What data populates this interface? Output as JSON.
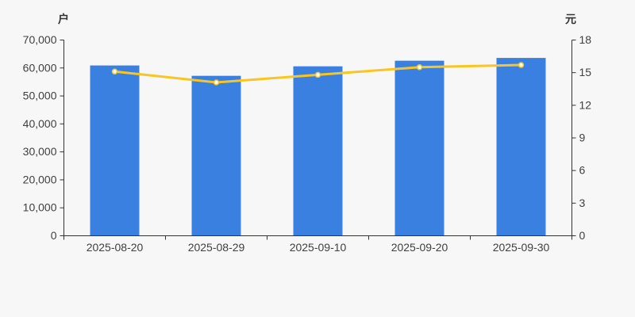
{
  "page": {
    "background_color": "#f7f7f7"
  },
  "chart_data": {
    "type": "bar",
    "subtype": "bar-with-line-dual-axis",
    "categories": [
      "2025-08-20",
      "2025-08-29",
      "2025-09-10",
      "2025-09-20",
      "2025-09-30"
    ],
    "series": [
      {
        "type": "bar",
        "axis": "left",
        "values": [
          60900,
          57200,
          60600,
          62600,
          63600
        ],
        "color": "#3a80e0"
      },
      {
        "type": "line",
        "axis": "right",
        "values": [
          15.1,
          14.1,
          14.8,
          15.5,
          15.7
        ],
        "color": "#f8c522",
        "marker_fill": "#ffffff"
      }
    ],
    "left_axis": {
      "unit": "户",
      "min": 0,
      "max": 70000,
      "tick_step": 10000,
      "tick_labels": [
        "0",
        "10,000",
        "20,000",
        "30,000",
        "40,000",
        "50,000",
        "60,000",
        "70,000"
      ]
    },
    "right_axis": {
      "unit": "元",
      "min": 0,
      "max": 18,
      "tick_step": 3,
      "tick_labels": [
        "0",
        "3",
        "6",
        "9",
        "12",
        "15",
        "18"
      ]
    },
    "grid": false,
    "legend": false,
    "title": "",
    "axis_color": "#333333",
    "label_color": "#404040"
  }
}
